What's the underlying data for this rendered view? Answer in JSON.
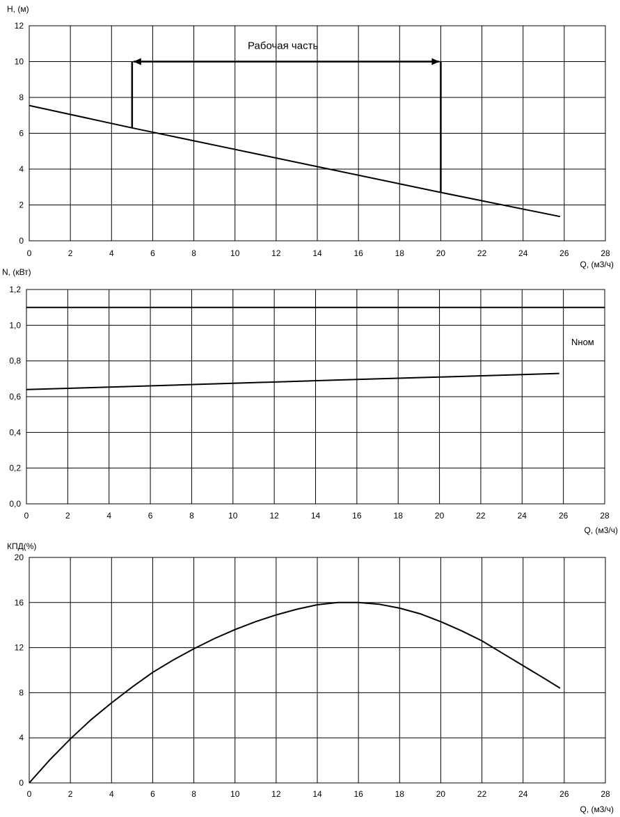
{
  "chart_data": [
    {
      "type": "line",
      "ylabel": "H, (м)",
      "xlabel": "Q, (м3/ч)",
      "xlim": [
        0,
        28
      ],
      "ylim": [
        0,
        12
      ],
      "x_ticks": [
        "0",
        "2",
        "4",
        "6",
        "8",
        "10",
        "12",
        "14",
        "16",
        "18",
        "20",
        "22",
        "24",
        "26",
        "28"
      ],
      "y_ticks": [
        "0",
        "2",
        "4",
        "6",
        "8",
        "10",
        "12"
      ],
      "grid": true,
      "series": [
        {
          "x": [
            0,
            5,
            10,
            15,
            20,
            25.8
          ],
          "y": [
            7.55,
            6.3,
            5.1,
            3.9,
            2.7,
            1.35
          ]
        }
      ],
      "annotation": {
        "text": "Рабочая часть",
        "range": [
          5,
          20
        ],
        "level": 10,
        "y_at_start": 6.3,
        "y_at_end": 2.7
      }
    },
    {
      "type": "line",
      "ylabel": "N, (кВт)",
      "xlabel": "Q, (м3/ч)",
      "xlim": [
        0,
        28
      ],
      "ylim": [
        0,
        1.2
      ],
      "x_ticks": [
        "0",
        "2",
        "4",
        "6",
        "8",
        "10",
        "12",
        "14",
        "16",
        "18",
        "20",
        "22",
        "24",
        "26",
        "28"
      ],
      "y_ticks": [
        "0,0",
        "0,2",
        "0,4",
        "0,6",
        "0,8",
        "1,0",
        "1,2"
      ],
      "grid": true,
      "series": [
        {
          "name": "Nном",
          "x": [
            0,
            28
          ],
          "y": [
            1.1,
            1.1
          ]
        },
        {
          "x": [
            0,
            5,
            10,
            15,
            20,
            25.8
          ],
          "y": [
            0.64,
            0.657,
            0.675,
            0.693,
            0.71,
            0.73
          ]
        }
      ]
    },
    {
      "type": "line",
      "ylabel": "КПД(%)",
      "xlabel": "Q, (м3/ч)",
      "xlim": [
        0,
        28
      ],
      "ylim": [
        0,
        20
      ],
      "x_ticks": [
        "0",
        "2",
        "4",
        "6",
        "8",
        "10",
        "12",
        "14",
        "16",
        "18",
        "20",
        "22",
        "24",
        "26",
        "28"
      ],
      "y_ticks": [
        "0",
        "4",
        "8",
        "12",
        "16",
        "20"
      ],
      "grid": true,
      "series": [
        {
          "x": [
            0,
            1,
            2,
            3,
            4,
            5,
            6,
            7,
            8,
            9,
            10,
            11,
            12,
            13,
            14,
            15,
            16,
            17,
            18,
            19,
            20,
            21,
            22,
            23,
            24,
            25,
            25.8
          ],
          "y": [
            0,
            2.05,
            3.9,
            5.6,
            7.1,
            8.5,
            9.8,
            10.9,
            11.9,
            12.8,
            13.6,
            14.3,
            14.9,
            15.4,
            15.8,
            16.0,
            16.0,
            15.85,
            15.5,
            15.0,
            14.3,
            13.5,
            12.6,
            11.5,
            10.4,
            9.3,
            8.4
          ]
        }
      ]
    }
  ]
}
